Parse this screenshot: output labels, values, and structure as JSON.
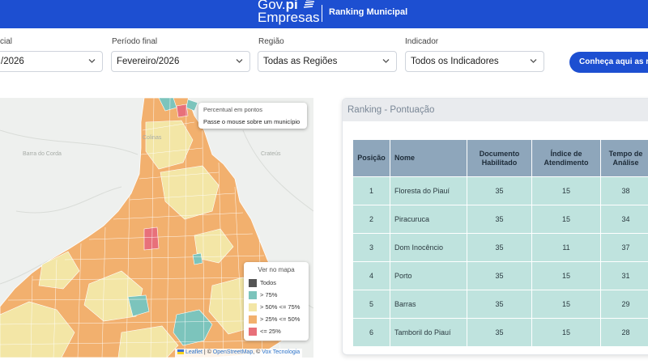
{
  "header": {
    "brand_line1": "Gov.",
    "brand_line1_bold": "pi",
    "brand_line2": "Empresas",
    "title": "Ranking Municipal",
    "bg_color": "#1d4fd1"
  },
  "filters": {
    "start": {
      "label": "cial",
      "value": "/2026"
    },
    "end": {
      "label": "Período final",
      "value": "Fevereiro/2026"
    },
    "region": {
      "label": "Região",
      "value": "Todas as Regiões"
    },
    "indicator": {
      "label": "Indicador",
      "value": "Todos os Indicadores"
    },
    "cta_label": "Conheça aqui as regras"
  },
  "map": {
    "place_labels": [
      "Barra do Corda",
      "Colinas",
      "Crateús"
    ],
    "tooltip": {
      "title": "Percentual em pontos",
      "hint": "Passe o mouse sobre um município"
    },
    "legend": {
      "title": "Ver no mapa",
      "items": [
        {
          "label": "Todos",
          "color": "#555555"
        },
        {
          "label": "> 75%",
          "color": "#7cc4bc"
        },
        {
          "label": "> 50% <= 75%",
          "color": "#f3e6a6"
        },
        {
          "label": "> 25% <= 50%",
          "color": "#f2b06e"
        },
        {
          "label": "<= 25%",
          "color": "#e8707a"
        }
      ]
    },
    "attribution": {
      "leaflet": "Leaflet",
      "sep1": " | © ",
      "osm": "OpenStreetMap",
      "sep2": ", © ",
      "vox": "Vox Tecnologia"
    }
  },
  "ranking": {
    "title": "Ranking - Pontuação",
    "columns": [
      "Posição",
      "Nome",
      "Documento Habilitado",
      "Índice de Atendimento",
      "Tempo de Análise"
    ],
    "rows": [
      [
        "1",
        "Floresta do Piauí",
        "35",
        "15",
        "38"
      ],
      [
        "2",
        "Piracuruca",
        "35",
        "15",
        "34"
      ],
      [
        "3",
        "Dom Inocêncio",
        "35",
        "11",
        "37"
      ],
      [
        "4",
        "Porto",
        "35",
        "15",
        "31"
      ],
      [
        "5",
        "Barras",
        "35",
        "15",
        "29"
      ],
      [
        "6",
        "Tamboril do Piauí",
        "35",
        "15",
        "28"
      ]
    ]
  }
}
